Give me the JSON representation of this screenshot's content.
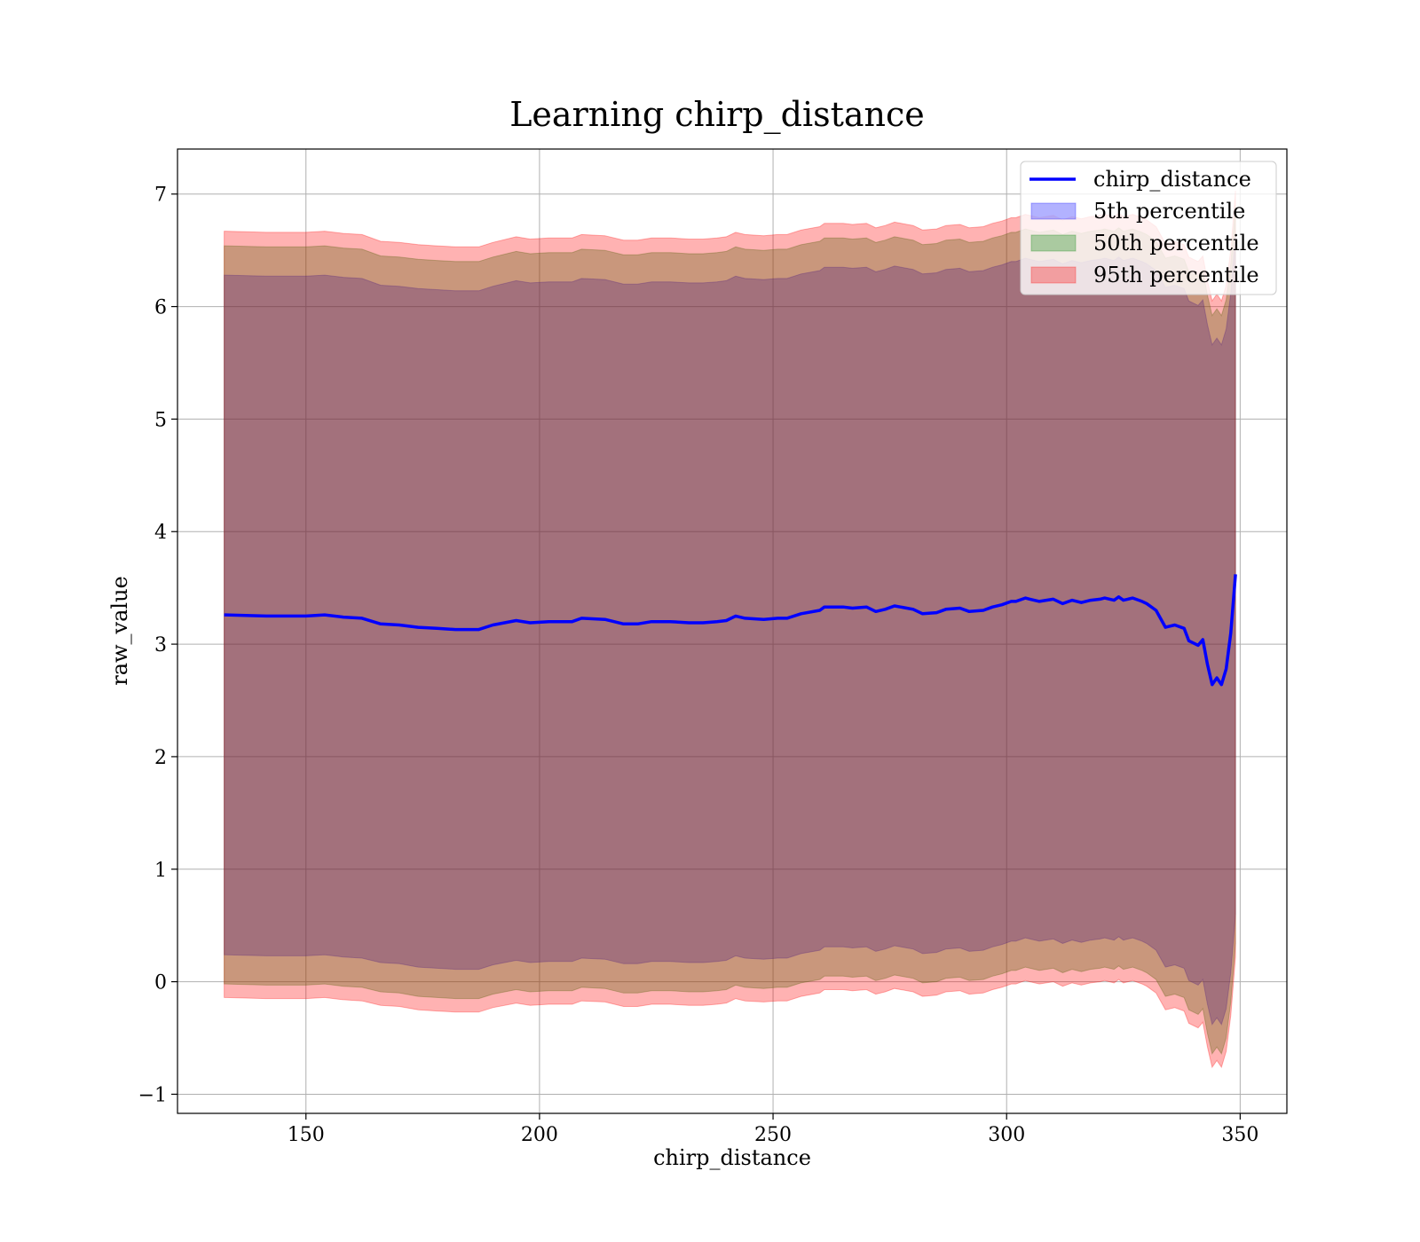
{
  "chart_data": {
    "type": "area",
    "title": "Learning chirp_distance",
    "xlabel": "chirp_distance",
    "ylabel": "raw_value",
    "xlim": [
      122.5,
      360
    ],
    "ylim": [
      -1.17,
      7.4
    ],
    "xticks": [
      150,
      200,
      250,
      300,
      350
    ],
    "yticks": [
      -1,
      0,
      1,
      2,
      3,
      4,
      5,
      6,
      7
    ],
    "ytick_labels": [
      "−1",
      "0",
      "1",
      "2",
      "3",
      "4",
      "5",
      "6",
      "7"
    ],
    "grid": true,
    "legend_position": "upper right",
    "x": [
      132.5,
      141.5,
      150,
      154,
      158,
      162,
      166,
      170,
      174,
      178,
      182,
      187,
      190,
      195,
      198,
      202,
      207,
      209,
      214,
      218,
      221,
      224,
      228,
      232,
      235,
      238,
      240,
      242,
      244,
      248,
      251,
      253,
      256,
      260,
      261,
      265,
      267,
      270,
      272,
      274,
      276,
      280,
      282,
      285,
      287,
      290,
      292,
      295,
      297,
      299,
      301,
      302,
      304,
      305,
      307,
      310,
      312,
      314,
      316,
      318,
      320,
      321,
      323,
      324,
      325,
      327,
      329,
      330,
      332,
      334,
      336,
      338,
      339,
      341,
      342,
      343,
      344,
      345,
      346,
      347,
      348,
      349
    ],
    "series": [
      {
        "name": "chirp_distance",
        "kind": "line",
        "color": "#0000ff",
        "values": [
          3.26,
          3.25,
          3.25,
          3.26,
          3.24,
          3.23,
          3.18,
          3.17,
          3.15,
          3.14,
          3.13,
          3.13,
          3.17,
          3.21,
          3.19,
          3.2,
          3.2,
          3.23,
          3.22,
          3.18,
          3.18,
          3.2,
          3.2,
          3.19,
          3.19,
          3.2,
          3.21,
          3.25,
          3.23,
          3.22,
          3.23,
          3.23,
          3.27,
          3.3,
          3.33,
          3.33,
          3.32,
          3.33,
          3.29,
          3.31,
          3.34,
          3.31,
          3.27,
          3.28,
          3.31,
          3.32,
          3.29,
          3.3,
          3.33,
          3.35,
          3.38,
          3.38,
          3.41,
          3.4,
          3.38,
          3.4,
          3.36,
          3.39,
          3.37,
          3.39,
          3.4,
          3.41,
          3.39,
          3.42,
          3.39,
          3.41,
          3.38,
          3.36,
          3.3,
          3.15,
          3.17,
          3.14,
          3.03,
          2.99,
          3.04,
          2.82,
          2.64,
          2.7,
          2.64,
          2.78,
          3.1,
          3.62
        ]
      },
      {
        "name": "5th percentile",
        "kind": "band",
        "color": "#0000ff",
        "opacity": 0.3,
        "lower": [
          0.24,
          0.23,
          0.23,
          0.24,
          0.22,
          0.21,
          0.17,
          0.16,
          0.13,
          0.12,
          0.11,
          0.11,
          0.15,
          0.19,
          0.17,
          0.18,
          0.18,
          0.21,
          0.2,
          0.16,
          0.16,
          0.18,
          0.18,
          0.17,
          0.17,
          0.18,
          0.19,
          0.23,
          0.21,
          0.2,
          0.21,
          0.21,
          0.25,
          0.28,
          0.31,
          0.31,
          0.3,
          0.31,
          0.27,
          0.29,
          0.32,
          0.29,
          0.25,
          0.26,
          0.29,
          0.3,
          0.27,
          0.28,
          0.31,
          0.33,
          0.36,
          0.36,
          0.39,
          0.38,
          0.36,
          0.38,
          0.34,
          0.37,
          0.35,
          0.37,
          0.38,
          0.39,
          0.37,
          0.4,
          0.37,
          0.39,
          0.36,
          0.34,
          0.28,
          0.13,
          0.15,
          0.12,
          0.01,
          -0.03,
          0.02,
          -0.2,
          -0.38,
          -0.32,
          -0.38,
          -0.24,
          0.08,
          0.6
        ],
        "upper": [
          6.28,
          6.27,
          6.27,
          6.28,
          6.26,
          6.25,
          6.19,
          6.18,
          6.16,
          6.15,
          6.14,
          6.14,
          6.18,
          6.23,
          6.21,
          6.22,
          6.22,
          6.25,
          6.24,
          6.2,
          6.2,
          6.22,
          6.22,
          6.21,
          6.21,
          6.22,
          6.23,
          6.27,
          6.25,
          6.24,
          6.25,
          6.25,
          6.29,
          6.32,
          6.35,
          6.35,
          6.34,
          6.35,
          6.31,
          6.33,
          6.36,
          6.33,
          6.29,
          6.3,
          6.33,
          6.34,
          6.31,
          6.32,
          6.35,
          6.37,
          6.4,
          6.4,
          6.43,
          6.42,
          6.4,
          6.42,
          6.38,
          6.41,
          6.39,
          6.41,
          6.42,
          6.43,
          6.41,
          6.44,
          6.41,
          6.43,
          6.4,
          6.38,
          6.32,
          6.17,
          6.19,
          6.16,
          6.05,
          6.01,
          6.06,
          5.84,
          5.66,
          5.72,
          5.66,
          5.8,
          6.12,
          6.64
        ]
      },
      {
        "name": "50th percentile",
        "kind": "band",
        "color": "#008000",
        "opacity": 0.3,
        "lower": [
          -0.02,
          -0.03,
          -0.03,
          -0.02,
          -0.04,
          -0.05,
          -0.09,
          -0.1,
          -0.13,
          -0.14,
          -0.15,
          -0.15,
          -0.11,
          -0.07,
          -0.09,
          -0.08,
          -0.08,
          -0.05,
          -0.06,
          -0.1,
          -0.1,
          -0.08,
          -0.08,
          -0.09,
          -0.09,
          -0.08,
          -0.07,
          -0.03,
          -0.05,
          -0.06,
          -0.05,
          -0.05,
          -0.01,
          0.02,
          0.05,
          0.05,
          0.04,
          0.05,
          0.01,
          0.03,
          0.06,
          0.03,
          -0.01,
          0.0,
          0.03,
          0.04,
          0.01,
          0.02,
          0.05,
          0.07,
          0.1,
          0.1,
          0.13,
          0.12,
          0.1,
          0.12,
          0.08,
          0.11,
          0.09,
          0.11,
          0.12,
          0.13,
          0.11,
          0.14,
          0.11,
          0.13,
          0.1,
          0.08,
          0.02,
          -0.13,
          -0.11,
          -0.14,
          -0.25,
          -0.29,
          -0.24,
          -0.46,
          -0.64,
          -0.58,
          -0.64,
          -0.5,
          -0.18,
          0.34
        ],
        "upper": [
          6.54,
          6.53,
          6.53,
          6.54,
          6.52,
          6.51,
          6.45,
          6.44,
          6.42,
          6.41,
          6.4,
          6.4,
          6.44,
          6.49,
          6.47,
          6.48,
          6.48,
          6.51,
          6.5,
          6.46,
          6.46,
          6.48,
          6.48,
          6.47,
          6.47,
          6.48,
          6.49,
          6.53,
          6.51,
          6.5,
          6.51,
          6.51,
          6.55,
          6.58,
          6.61,
          6.61,
          6.6,
          6.61,
          6.57,
          6.59,
          6.62,
          6.59,
          6.55,
          6.56,
          6.59,
          6.6,
          6.57,
          6.58,
          6.61,
          6.63,
          6.66,
          6.66,
          6.69,
          6.68,
          6.66,
          6.68,
          6.64,
          6.67,
          6.65,
          6.67,
          6.68,
          6.69,
          6.67,
          6.7,
          6.67,
          6.69,
          6.66,
          6.64,
          6.58,
          6.43,
          6.45,
          6.42,
          6.31,
          6.27,
          6.32,
          6.1,
          5.92,
          5.98,
          5.92,
          6.06,
          6.38,
          6.9
        ]
      },
      {
        "name": "95th percentile",
        "kind": "band",
        "color": "#ff0000",
        "opacity": 0.3,
        "lower": [
          -0.14,
          -0.15,
          -0.15,
          -0.14,
          -0.16,
          -0.17,
          -0.21,
          -0.22,
          -0.25,
          -0.26,
          -0.27,
          -0.27,
          -0.23,
          -0.19,
          -0.21,
          -0.2,
          -0.2,
          -0.17,
          -0.18,
          -0.22,
          -0.22,
          -0.2,
          -0.2,
          -0.21,
          -0.21,
          -0.2,
          -0.19,
          -0.15,
          -0.17,
          -0.18,
          -0.17,
          -0.17,
          -0.13,
          -0.1,
          -0.07,
          -0.07,
          -0.08,
          -0.07,
          -0.11,
          -0.09,
          -0.06,
          -0.09,
          -0.13,
          -0.12,
          -0.09,
          -0.08,
          -0.11,
          -0.1,
          -0.07,
          -0.05,
          -0.02,
          -0.02,
          0.01,
          0.0,
          -0.02,
          0.0,
          -0.04,
          -0.01,
          -0.03,
          -0.01,
          0.0,
          0.01,
          -0.01,
          0.02,
          -0.01,
          0.01,
          -0.02,
          -0.04,
          -0.1,
          -0.25,
          -0.23,
          -0.26,
          -0.37,
          -0.41,
          -0.36,
          -0.58,
          -0.76,
          -0.7,
          -0.76,
          -0.62,
          -0.3,
          0.22
        ],
        "upper": [
          6.67,
          6.66,
          6.66,
          6.67,
          6.65,
          6.64,
          6.58,
          6.57,
          6.55,
          6.54,
          6.53,
          6.53,
          6.57,
          6.62,
          6.6,
          6.61,
          6.61,
          6.64,
          6.63,
          6.59,
          6.59,
          6.61,
          6.61,
          6.6,
          6.6,
          6.61,
          6.62,
          6.66,
          6.64,
          6.63,
          6.64,
          6.64,
          6.68,
          6.71,
          6.74,
          6.74,
          6.73,
          6.74,
          6.7,
          6.72,
          6.75,
          6.72,
          6.68,
          6.69,
          6.72,
          6.73,
          6.7,
          6.71,
          6.74,
          6.76,
          6.79,
          6.79,
          6.82,
          6.81,
          6.79,
          6.81,
          6.77,
          6.8,
          6.78,
          6.8,
          6.81,
          6.82,
          6.8,
          6.83,
          6.8,
          6.82,
          6.79,
          6.77,
          6.71,
          6.56,
          6.58,
          6.55,
          6.44,
          6.4,
          6.45,
          6.23,
          6.05,
          6.11,
          6.05,
          6.19,
          6.51,
          7.03
        ]
      }
    ]
  }
}
